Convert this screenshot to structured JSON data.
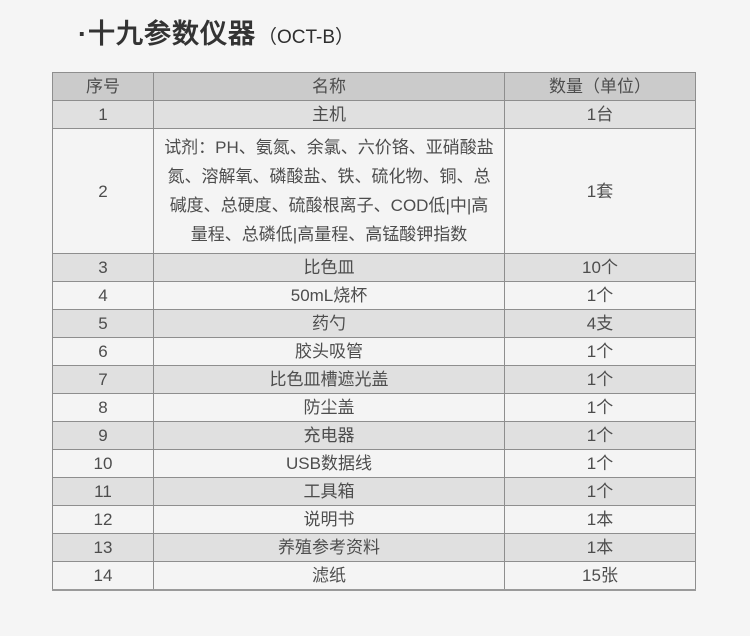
{
  "page": {
    "background": "#f5f5f5"
  },
  "title": {
    "main": "·十九参数仪器",
    "suffix": "（OCT-B）"
  },
  "table": {
    "headers": [
      "序号",
      "名称",
      "数量（单位）"
    ],
    "rows": [
      {
        "index": "1",
        "name": "主机",
        "qty": "1台"
      },
      {
        "index": "2",
        "name": "试剂：PH、氨氮、余氯、六价铬、亚硝酸盐氮、溶解氧、磷酸盐、铁、硫化物、铜、总碱度、总硬度、硫酸根离子、COD低|中|高量程、总磷低|高量程、高锰酸钾指数",
        "qty": "1套"
      },
      {
        "index": "3",
        "name": "比色皿",
        "qty": "10个"
      },
      {
        "index": "4",
        "name": "50mL烧杯",
        "qty": "1个"
      },
      {
        "index": "5",
        "name": "药勺",
        "qty": "4支"
      },
      {
        "index": "6",
        "name": "胶头吸管",
        "qty": "1个"
      },
      {
        "index": "7",
        "name": "比色皿槽遮光盖",
        "qty": "1个"
      },
      {
        "index": "8",
        "name": "防尘盖",
        "qty": "1个"
      },
      {
        "index": "9",
        "name": "充电器",
        "qty": "1个"
      },
      {
        "index": "10",
        "name": "USB数据线",
        "qty": "1个"
      },
      {
        "index": "11",
        "name": "工具箱",
        "qty": "1个"
      },
      {
        "index": "12",
        "name": "说明书",
        "qty": "1本"
      },
      {
        "index": "13",
        "name": "养殖参考资料",
        "qty": "1本"
      },
      {
        "index": "14",
        "name": "滤纸",
        "qty": "15张"
      }
    ]
  },
  "colors": {
    "page_bg": "#f5f5f5",
    "header_bg": "#cbcbcb",
    "row_gray_bg": "#e0e0e0",
    "row_light_bg": "#f4f4f4",
    "border": "#8e8e8e",
    "text": "#4d4d4d",
    "title_text": "#333333"
  }
}
